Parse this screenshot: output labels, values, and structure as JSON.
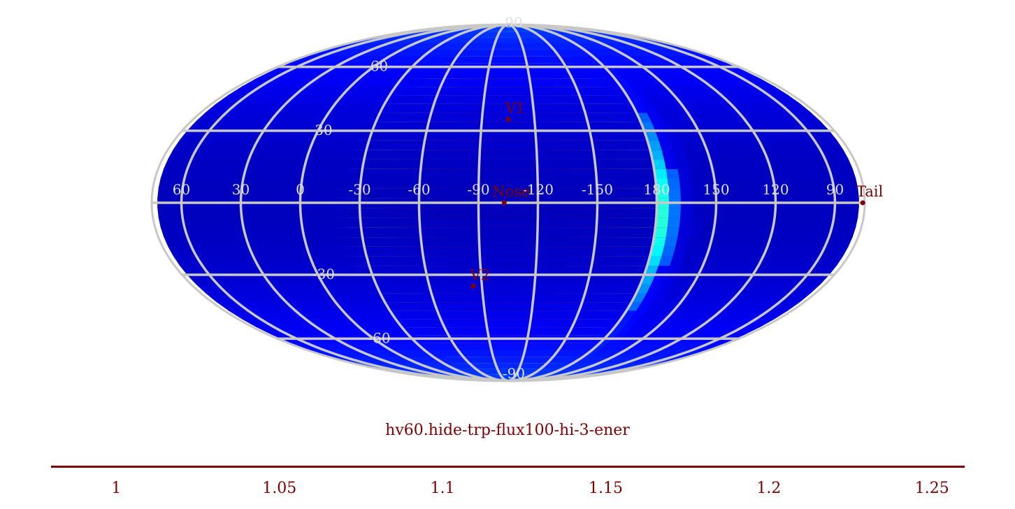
{
  "map": {
    "projection": "mollweide",
    "title": "hv60.hide-trp-flux100-hi-3-ener",
    "colormap": "jet",
    "center_lon": -105,
    "grid_color": "#c8c8c8",
    "label_color": "#800000",
    "grid_label_color": "#e0e0e0",
    "hot_region": {
      "center_lon": -105,
      "center_lat": -5,
      "half_lon": 80
    },
    "lon_gridlines": [
      90,
      60,
      30,
      0,
      -30,
      -60,
      -90,
      -120,
      -150,
      180,
      150,
      120
    ],
    "lat_gridlines": [
      -60,
      -30,
      0,
      30,
      60
    ],
    "lon_labels": [
      {
        "lon": 60,
        "text": "60"
      },
      {
        "lon": 30,
        "text": "30"
      },
      {
        "lon": 0,
        "text": "0"
      },
      {
        "lon": -30,
        "text": "-30"
      },
      {
        "lon": -60,
        "text": "-60"
      },
      {
        "lon": -90,
        "text": "-90"
      },
      {
        "lon": -120,
        "text": "-120"
      },
      {
        "lon": -150,
        "text": "-150"
      },
      {
        "lon": 180,
        "text": "180"
      },
      {
        "lon": 150,
        "text": "150"
      },
      {
        "lon": 120,
        "text": "120"
      },
      {
        "lon": 90,
        "text": "90"
      }
    ],
    "lat_labels": [
      {
        "lat": 90,
        "text": "90"
      },
      {
        "lat": 60,
        "text": "60"
      },
      {
        "lat": 30,
        "text": "30"
      },
      {
        "lat": -30,
        "text": "-30"
      },
      {
        "lat": -60,
        "text": "-60"
      },
      {
        "lat": -90,
        "text": "-90"
      }
    ],
    "markers": [
      {
        "name": "V1",
        "lon": -105,
        "lat": 35
      },
      {
        "name": "Nose",
        "lon": -103,
        "lat": 0
      },
      {
        "name": "V2",
        "lon": -85,
        "lat": -35
      },
      {
        "name": "Tail",
        "lon": 76,
        "lat": 0
      }
    ]
  },
  "colorbar": {
    "min": 0.98,
    "max": 1.26,
    "ticks": [
      "1",
      "1.05",
      "1.1",
      "1.15",
      "1.2",
      "1.25"
    ],
    "tick_values": [
      1,
      1.05,
      1.1,
      1.15,
      1.2,
      1.25
    ]
  }
}
